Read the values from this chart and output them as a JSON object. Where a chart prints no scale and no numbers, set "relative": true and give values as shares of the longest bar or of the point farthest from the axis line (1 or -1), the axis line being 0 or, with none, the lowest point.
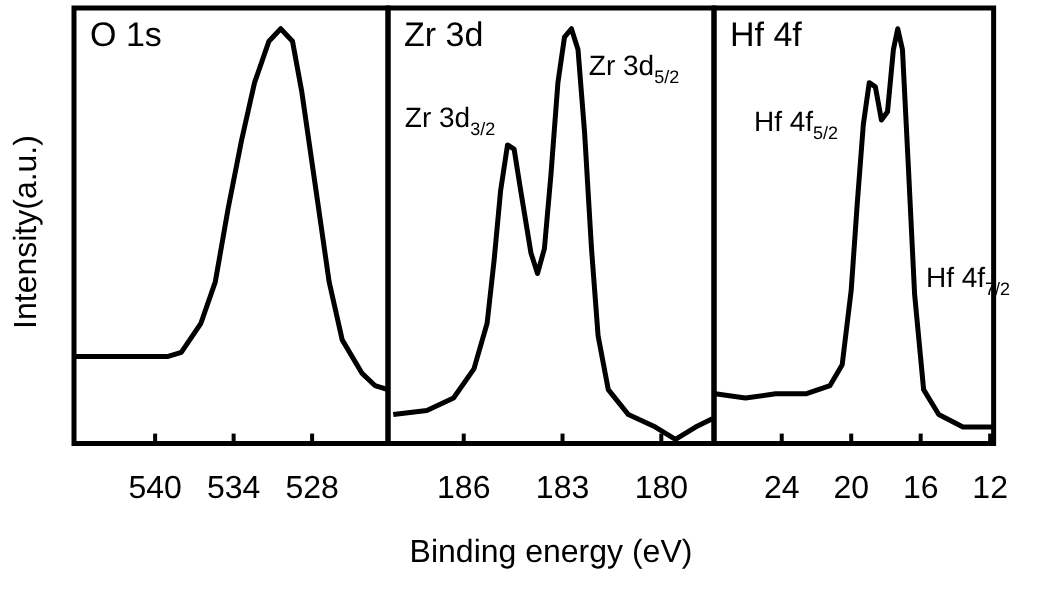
{
  "chart_data": [
    {
      "type": "line",
      "title": "O 1s",
      "ylabel": "Intensity(a.u.)",
      "relative": true,
      "xlim": [
        546.2,
        522.2
      ],
      "xticks": [
        540,
        534,
        528
      ],
      "tick_labels": "x",
      "grid": false,
      "legend": false,
      "marker": "none",
      "line_style": "solid",
      "color": "#000000",
      "x": [
        546.2,
        539.0,
        538.0,
        536.5,
        535.4,
        534.4,
        533.4,
        532.4,
        531.3,
        530.4,
        529.5,
        528.8,
        527.7,
        526.7,
        525.7,
        524.2,
        523.2,
        522.2
      ],
      "values": [
        0.21,
        0.21,
        0.22,
        0.29,
        0.39,
        0.57,
        0.73,
        0.87,
        0.97,
        1.0,
        0.97,
        0.85,
        0.61,
        0.39,
        0.25,
        0.17,
        0.14,
        0.13
      ]
    },
    {
      "type": "line",
      "title": "Zr 3d",
      "xlabel": "Binding energy (eV)",
      "relative": true,
      "xlim": [
        188.3,
        178.4
      ],
      "xticks": [
        186,
        183,
        180
      ],
      "tick_labels": "x",
      "grid": false,
      "legend": false,
      "marker": "none",
      "line_style": "solid",
      "color": "#000000",
      "x": [
        188.14,
        187.12,
        186.31,
        185.69,
        185.29,
        185.08,
        184.88,
        184.67,
        184.47,
        184.27,
        183.96,
        183.76,
        183.55,
        183.35,
        183.14,
        182.94,
        182.73,
        182.53,
        182.33,
        182.12,
        181.92,
        181.61,
        181.0,
        180.18,
        179.57,
        178.96,
        178.45
      ],
      "values": [
        0.07,
        0.08,
        0.11,
        0.18,
        0.29,
        0.44,
        0.61,
        0.72,
        0.71,
        0.61,
        0.46,
        0.41,
        0.47,
        0.65,
        0.87,
        0.98,
        1.0,
        0.95,
        0.75,
        0.47,
        0.26,
        0.13,
        0.07,
        0.04,
        0.01,
        0.04,
        0.06
      ],
      "annotations": [
        "Zr 3d$_{3/2}$",
        "Zr 3d$_{5/2}$"
      ]
    },
    {
      "type": "line",
      "title": "Hf 4f",
      "relative": true,
      "xlim": [
        27.9,
        11.8
      ],
      "xticks": [
        24,
        20,
        16,
        12
      ],
      "tick_labels": "x",
      "grid": false,
      "legend": false,
      "marker": "none",
      "line_style": "solid",
      "color": "#000000",
      "x": [
        27.83,
        26.09,
        24.35,
        22.61,
        21.22,
        20.52,
        20.0,
        19.65,
        19.3,
        18.96,
        18.61,
        18.26,
        17.91,
        17.57,
        17.32,
        17.05,
        16.7,
        16.35,
        15.83,
        14.96,
        13.57,
        12.52,
        11.83
      ],
      "values": [
        0.12,
        0.11,
        0.12,
        0.12,
        0.14,
        0.19,
        0.37,
        0.58,
        0.77,
        0.87,
        0.86,
        0.78,
        0.8,
        0.95,
        1.0,
        0.95,
        0.66,
        0.36,
        0.13,
        0.07,
        0.04,
        0.04,
        0.04
      ],
      "annotations": [
        "Hf 4f$_{5/2}$",
        "Hf 4f$_{7/2}$"
      ]
    }
  ]
}
